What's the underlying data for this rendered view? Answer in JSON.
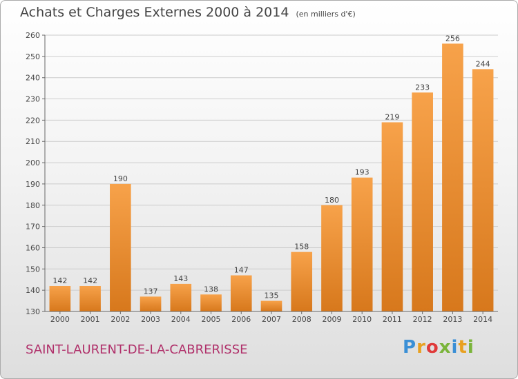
{
  "title": "Achats et Charges Externes 2000 à 2014",
  "unit": "(en milliers d'€)",
  "commune": "SAINT-LAURENT-DE-LA-CABRERISSE",
  "logo": {
    "letters": [
      "P",
      "r",
      "o",
      "x",
      "i",
      "t",
      "i"
    ],
    "colors": [
      "#3a8fd6",
      "#e8a020",
      "#e03a3a",
      "#7ab43a",
      "#3a8fd6",
      "#e8a020",
      "#7ab43a"
    ]
  },
  "colors": {
    "bar_light": "#f7a24a",
    "bar_dark": "#d7781c",
    "title": "#444444",
    "commune": "#b0306a"
  },
  "chart_data": {
    "type": "bar",
    "title": "Achats et Charges Externes 2000 à 2014",
    "subtitle": "(en milliers d'€)",
    "categories": [
      "2000",
      "2001",
      "2002",
      "2003",
      "2004",
      "2005",
      "2006",
      "2007",
      "2008",
      "2009",
      "2010",
      "2011",
      "2012",
      "2013",
      "2014"
    ],
    "values": [
      142,
      142,
      190,
      137,
      143,
      138,
      147,
      135,
      158,
      180,
      193,
      219,
      233,
      256,
      244
    ],
    "ylim": [
      130,
      260
    ],
    "yticks": [
      130,
      140,
      150,
      160,
      170,
      180,
      190,
      200,
      210,
      220,
      230,
      240,
      250,
      260
    ],
    "grid": true,
    "xlabel": "",
    "ylabel": ""
  }
}
